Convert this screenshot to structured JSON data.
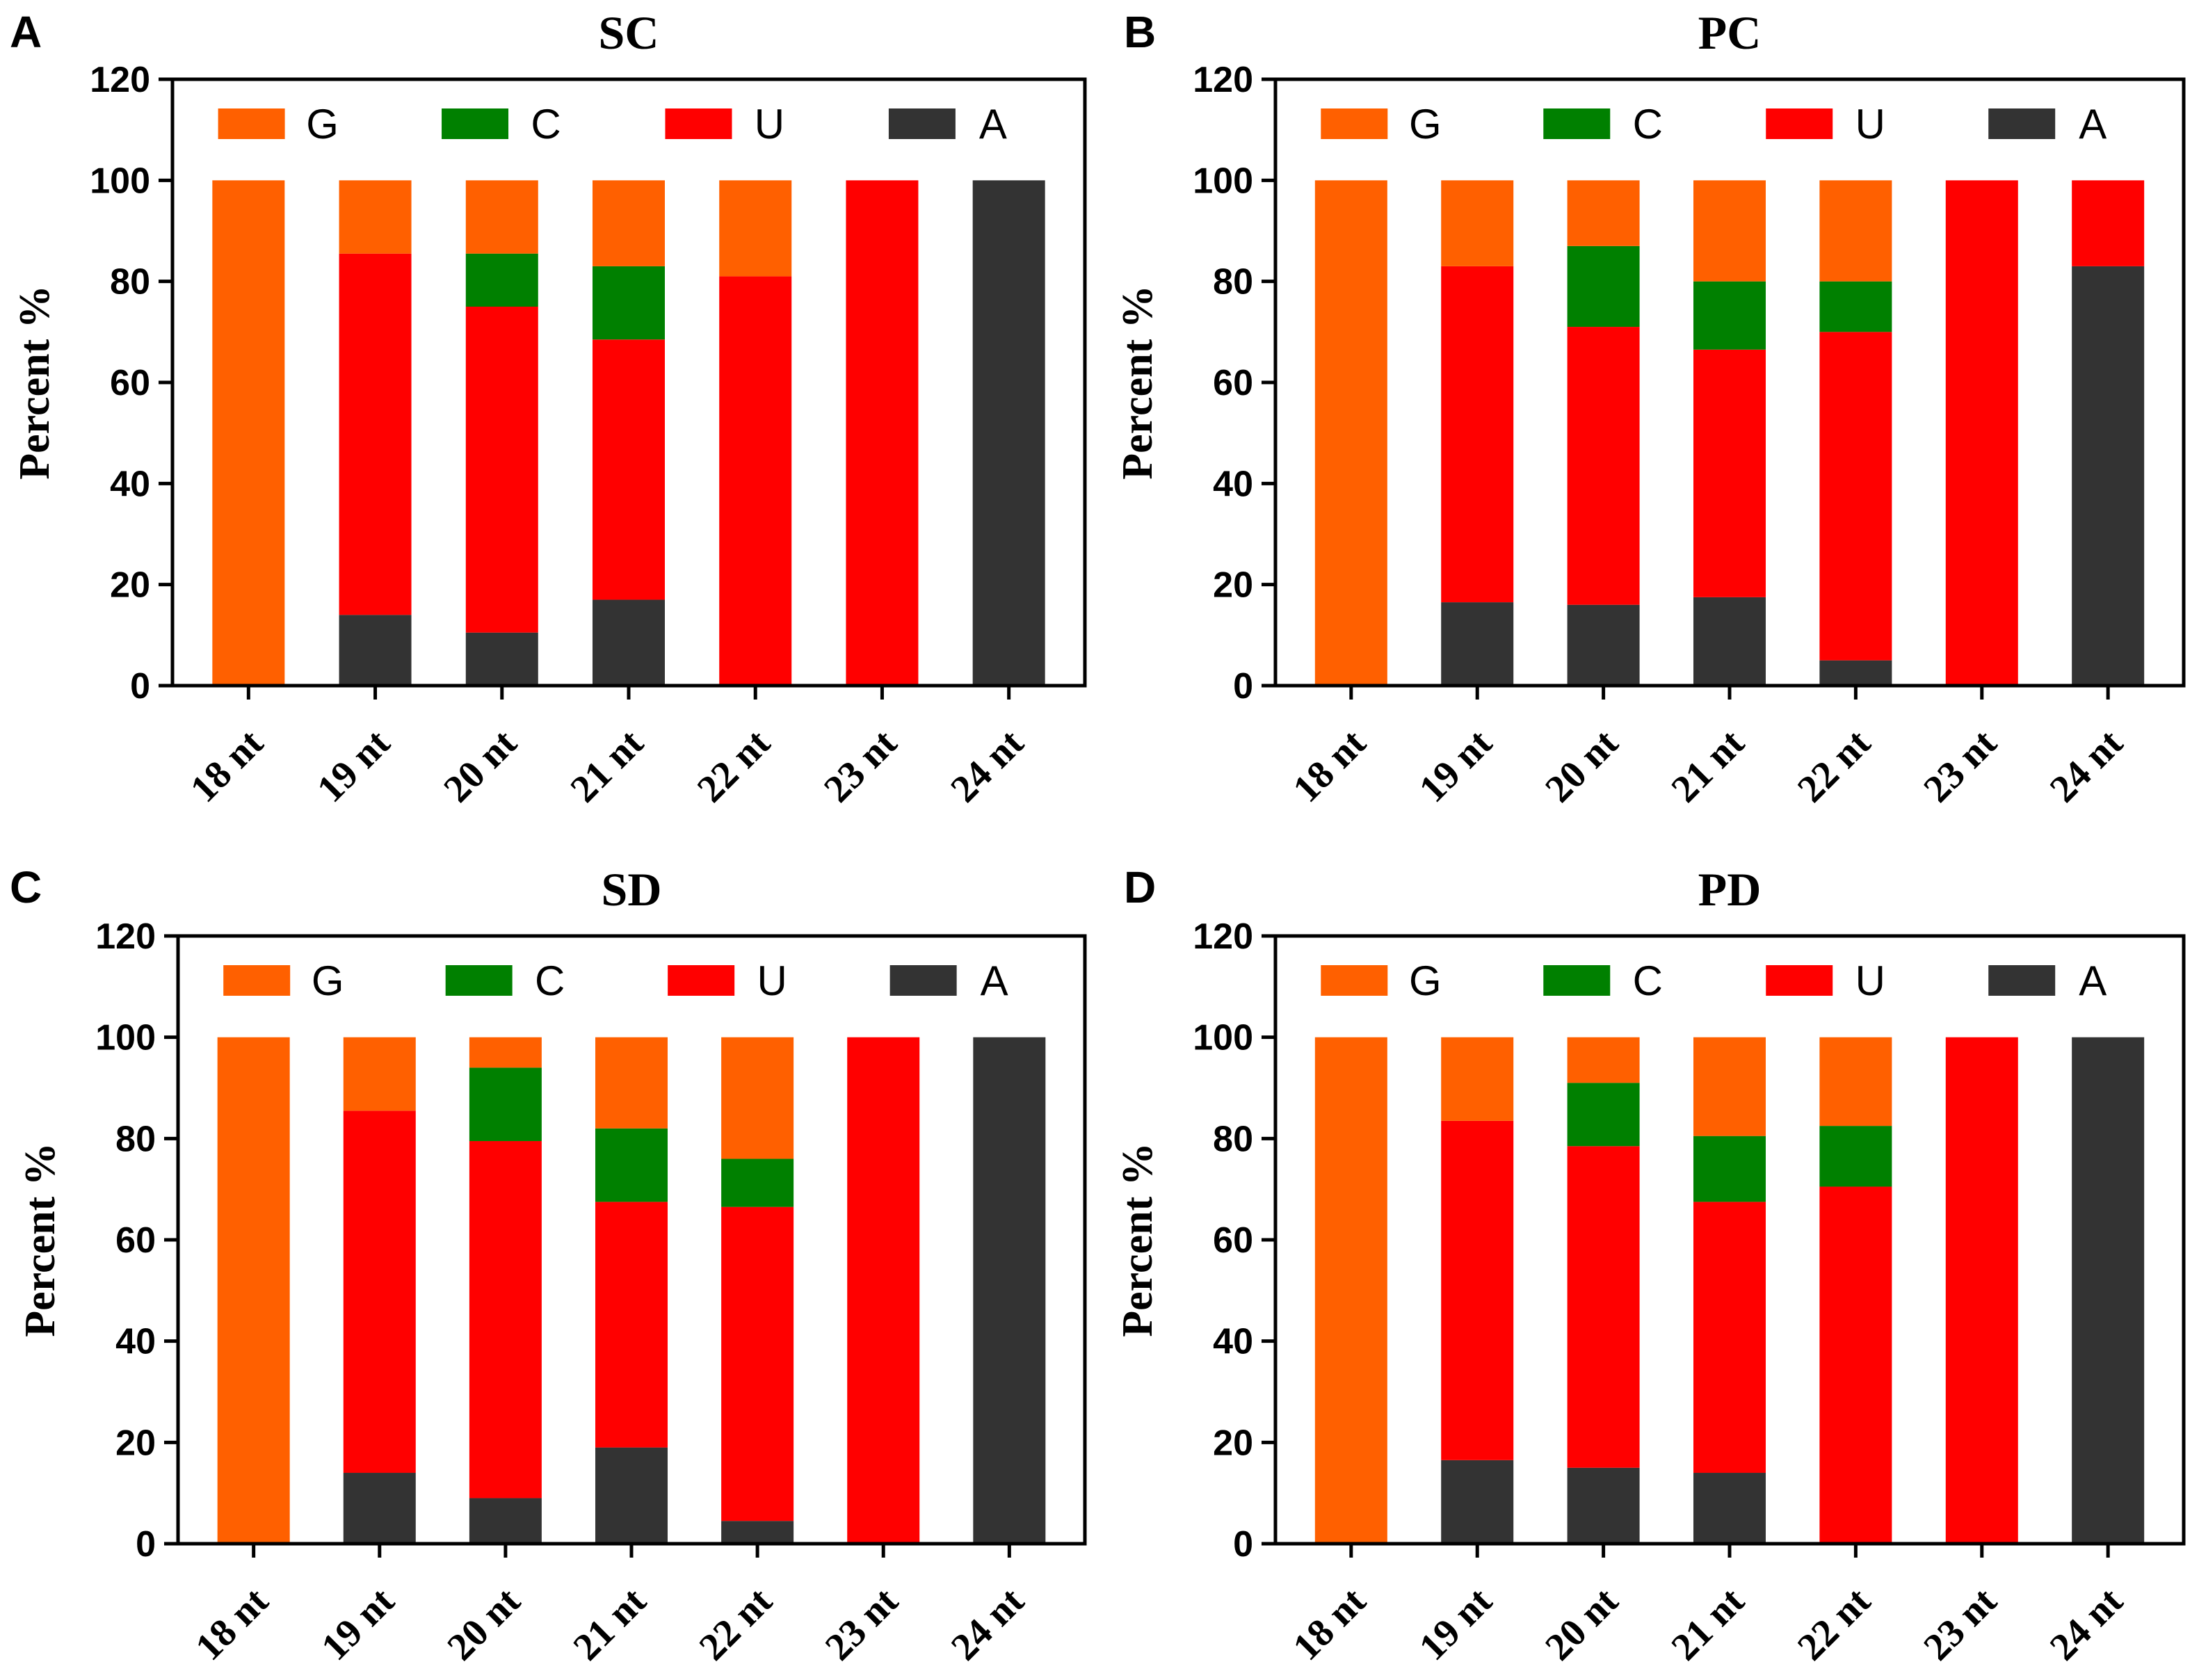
{
  "colors": {
    "G": "#ff6000",
    "C": "#008000",
    "U": "#ff0000",
    "A": "#333333"
  },
  "chart_data": [
    {
      "type": "bar",
      "panel": "A",
      "title": "SC",
      "ylabel": "Percent %",
      "xlabel": "",
      "ylim": [
        0,
        120
      ],
      "yticks": [
        0,
        20,
        40,
        60,
        80,
        100,
        120
      ],
      "categories": [
        "18 nt",
        "19 nt",
        "20 nt",
        "21 nt",
        "22 nt",
        "23 nt",
        "24 nt"
      ],
      "legend": [
        "G",
        "C",
        "U",
        "A"
      ],
      "series": [
        {
          "name": "A",
          "values": [
            0,
            14,
            10.5,
            17,
            0,
            0,
            100
          ]
        },
        {
          "name": "U",
          "values": [
            0,
            71.5,
            64.5,
            51.5,
            81,
            100,
            0
          ]
        },
        {
          "name": "C",
          "values": [
            0,
            0,
            10.5,
            14.5,
            0,
            0,
            0
          ]
        },
        {
          "name": "G",
          "values": [
            100,
            14.5,
            14.5,
            17,
            19,
            0,
            0
          ]
        }
      ]
    },
    {
      "type": "bar",
      "panel": "B",
      "title": "PC",
      "ylabel": "Percent %",
      "xlabel": "",
      "ylim": [
        0,
        120
      ],
      "yticks": [
        0,
        20,
        40,
        60,
        80,
        100,
        120
      ],
      "categories": [
        "18 nt",
        "19 nt",
        "20 nt",
        "21 nt",
        "22 nt",
        "23 nt",
        "24 nt"
      ],
      "legend": [
        "G",
        "C",
        "U",
        "A"
      ],
      "series": [
        {
          "name": "A",
          "values": [
            0,
            16.5,
            16,
            17.5,
            5,
            0,
            83
          ]
        },
        {
          "name": "U",
          "values": [
            0,
            66.5,
            55,
            49,
            65,
            100,
            17
          ]
        },
        {
          "name": "C",
          "values": [
            0,
            0,
            16,
            13.5,
            10,
            0,
            0
          ]
        },
        {
          "name": "G",
          "values": [
            100,
            17,
            13,
            20,
            20,
            0,
            0
          ]
        }
      ]
    },
    {
      "type": "bar",
      "panel": "C",
      "title": "SD",
      "ylabel": "Percent %",
      "xlabel": "",
      "ylim": [
        0,
        120
      ],
      "yticks": [
        0,
        20,
        40,
        60,
        80,
        100,
        120
      ],
      "categories": [
        "18 nt",
        "19 nt",
        "20 nt",
        "21 nt",
        "22 nt",
        "23 nt",
        "24 nt"
      ],
      "legend": [
        "G",
        "C",
        "U",
        "A"
      ],
      "series": [
        {
          "name": "A",
          "values": [
            0,
            14,
            9,
            19,
            4.5,
            0,
            100
          ]
        },
        {
          "name": "U",
          "values": [
            0,
            71.5,
            70.5,
            48.5,
            62,
            100,
            0
          ]
        },
        {
          "name": "C",
          "values": [
            0,
            0,
            14.5,
            14.5,
            9.5,
            0,
            0
          ]
        },
        {
          "name": "G",
          "values": [
            100,
            14.5,
            6,
            18,
            24,
            0,
            0
          ]
        }
      ]
    },
    {
      "type": "bar",
      "panel": "D",
      "title": "PD",
      "ylabel": "Percent %",
      "xlabel": "",
      "ylim": [
        0,
        120
      ],
      "yticks": [
        0,
        20,
        40,
        60,
        80,
        100,
        120
      ],
      "categories": [
        "18 nt",
        "19 nt",
        "20 nt",
        "21 nt",
        "22 nt",
        "23 nt",
        "24 nt"
      ],
      "legend": [
        "G",
        "C",
        "U",
        "A"
      ],
      "series": [
        {
          "name": "A",
          "values": [
            0,
            16.5,
            15,
            14,
            0,
            0,
            100
          ]
        },
        {
          "name": "U",
          "values": [
            0,
            67,
            63.5,
            53.5,
            70.5,
            100,
            0
          ]
        },
        {
          "name": "C",
          "values": [
            0,
            0,
            12.5,
            13,
            12,
            0,
            0
          ]
        },
        {
          "name": "G",
          "values": [
            100,
            16.5,
            9,
            19.5,
            17.5,
            0,
            0
          ]
        }
      ]
    }
  ]
}
